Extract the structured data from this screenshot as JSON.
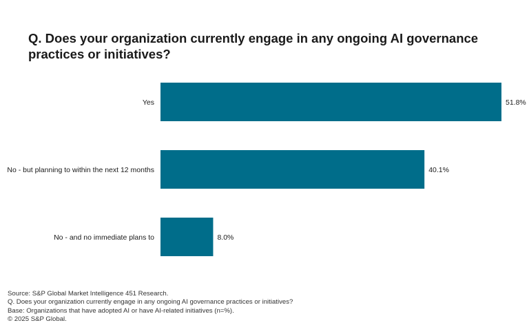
{
  "chart_data": {
    "type": "bar",
    "orientation": "horizontal",
    "title": "Q. Does your organization currently engage in any ongoing AI governance practices or initiatives?",
    "categories": [
      "Yes",
      "No - but planning to within the next 12 months",
      "No - and no immediate plans to"
    ],
    "values": [
      51.8,
      40.1,
      8.0
    ],
    "value_labels": [
      "51.8%",
      "40.1%",
      "8.0%"
    ],
    "unit": "%",
    "xlim": [
      0,
      51.8
    ],
    "xlabel": "",
    "ylabel": "",
    "grid": false,
    "legend": "none",
    "bar_color": "#006d8a"
  },
  "footnotes": {
    "source": "Source: S&P Global Market Intelligence 451 Research.",
    "question": "Q. Does your organization currently engage in any ongoing AI governance practices or initiatives?",
    "base": "Base: Organizations that have adopted AI or have AI-related initiatives (n=%).",
    "copyright": "© 2025 S&P Global."
  }
}
